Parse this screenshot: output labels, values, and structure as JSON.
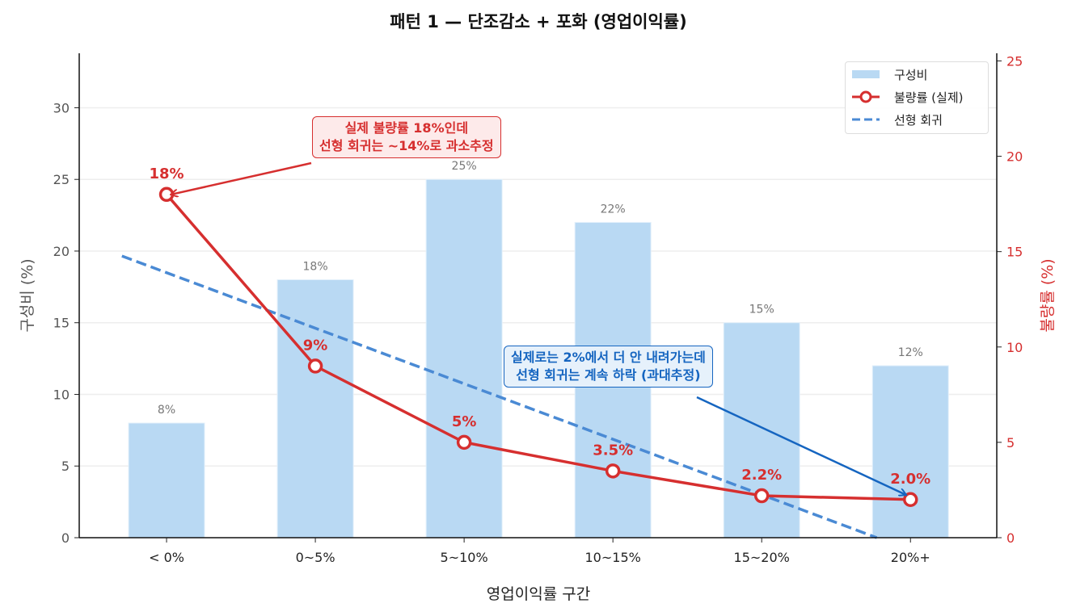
{
  "chart_data": {
    "type": "bar+line",
    "title": "패턴 1 — 단조감소 + 포화 (영업이익률)",
    "xlabel": "영업이익률 구간",
    "ylabel_left": "구성비 (%)",
    "ylabel_right": "불량률 (%)",
    "categories": [
      "< 0%",
      "0~5%",
      "5~10%",
      "10~15%",
      "15~20%",
      "20%+"
    ],
    "series": [
      {
        "name": "구성비",
        "type": "bar",
        "axis": "left",
        "values": [
          8,
          18,
          25,
          22,
          15,
          12
        ],
        "labels": [
          "8%",
          "18%",
          "25%",
          "22%",
          "15%",
          "12%"
        ],
        "color": "#b9d9f3"
      },
      {
        "name": "불량률 (실제)",
        "type": "line",
        "axis": "right",
        "values": [
          18,
          9,
          5,
          3.5,
          2.2,
          2.0
        ],
        "labels": [
          "18%",
          "9%",
          "5%",
          "3.5%",
          "2.2%",
          "2.0%"
        ],
        "color": "#d62f2f"
      },
      {
        "name": "선형 회귀",
        "type": "line-dashed",
        "axis": "right",
        "slope": -2.911,
        "intercept": 13.896,
        "color": "#4a8ad4"
      }
    ],
    "ylim_left": [
      0,
      33.8
    ],
    "ylim_right": [
      0,
      25.4
    ],
    "yticks_left": [
      0,
      5,
      10,
      15,
      20,
      25,
      30
    ],
    "yticks_right": [
      0,
      5,
      10,
      15,
      20,
      25
    ],
    "grid": "horizontal",
    "legend_position": "top-right",
    "annotations": [
      {
        "text_lines": [
          "실제 불량률 18%인데",
          "선형 회귀는 ~14%로 과소추정"
        ],
        "target_category": "< 0%",
        "color": "#d62f2f"
      },
      {
        "text_lines": [
          "실제로는 2%에서 더 안 내려가는데",
          "선형 회귀는 계속 하락 (과대추정)"
        ],
        "target_category": "20%+",
        "color": "#1565c0"
      }
    ]
  }
}
